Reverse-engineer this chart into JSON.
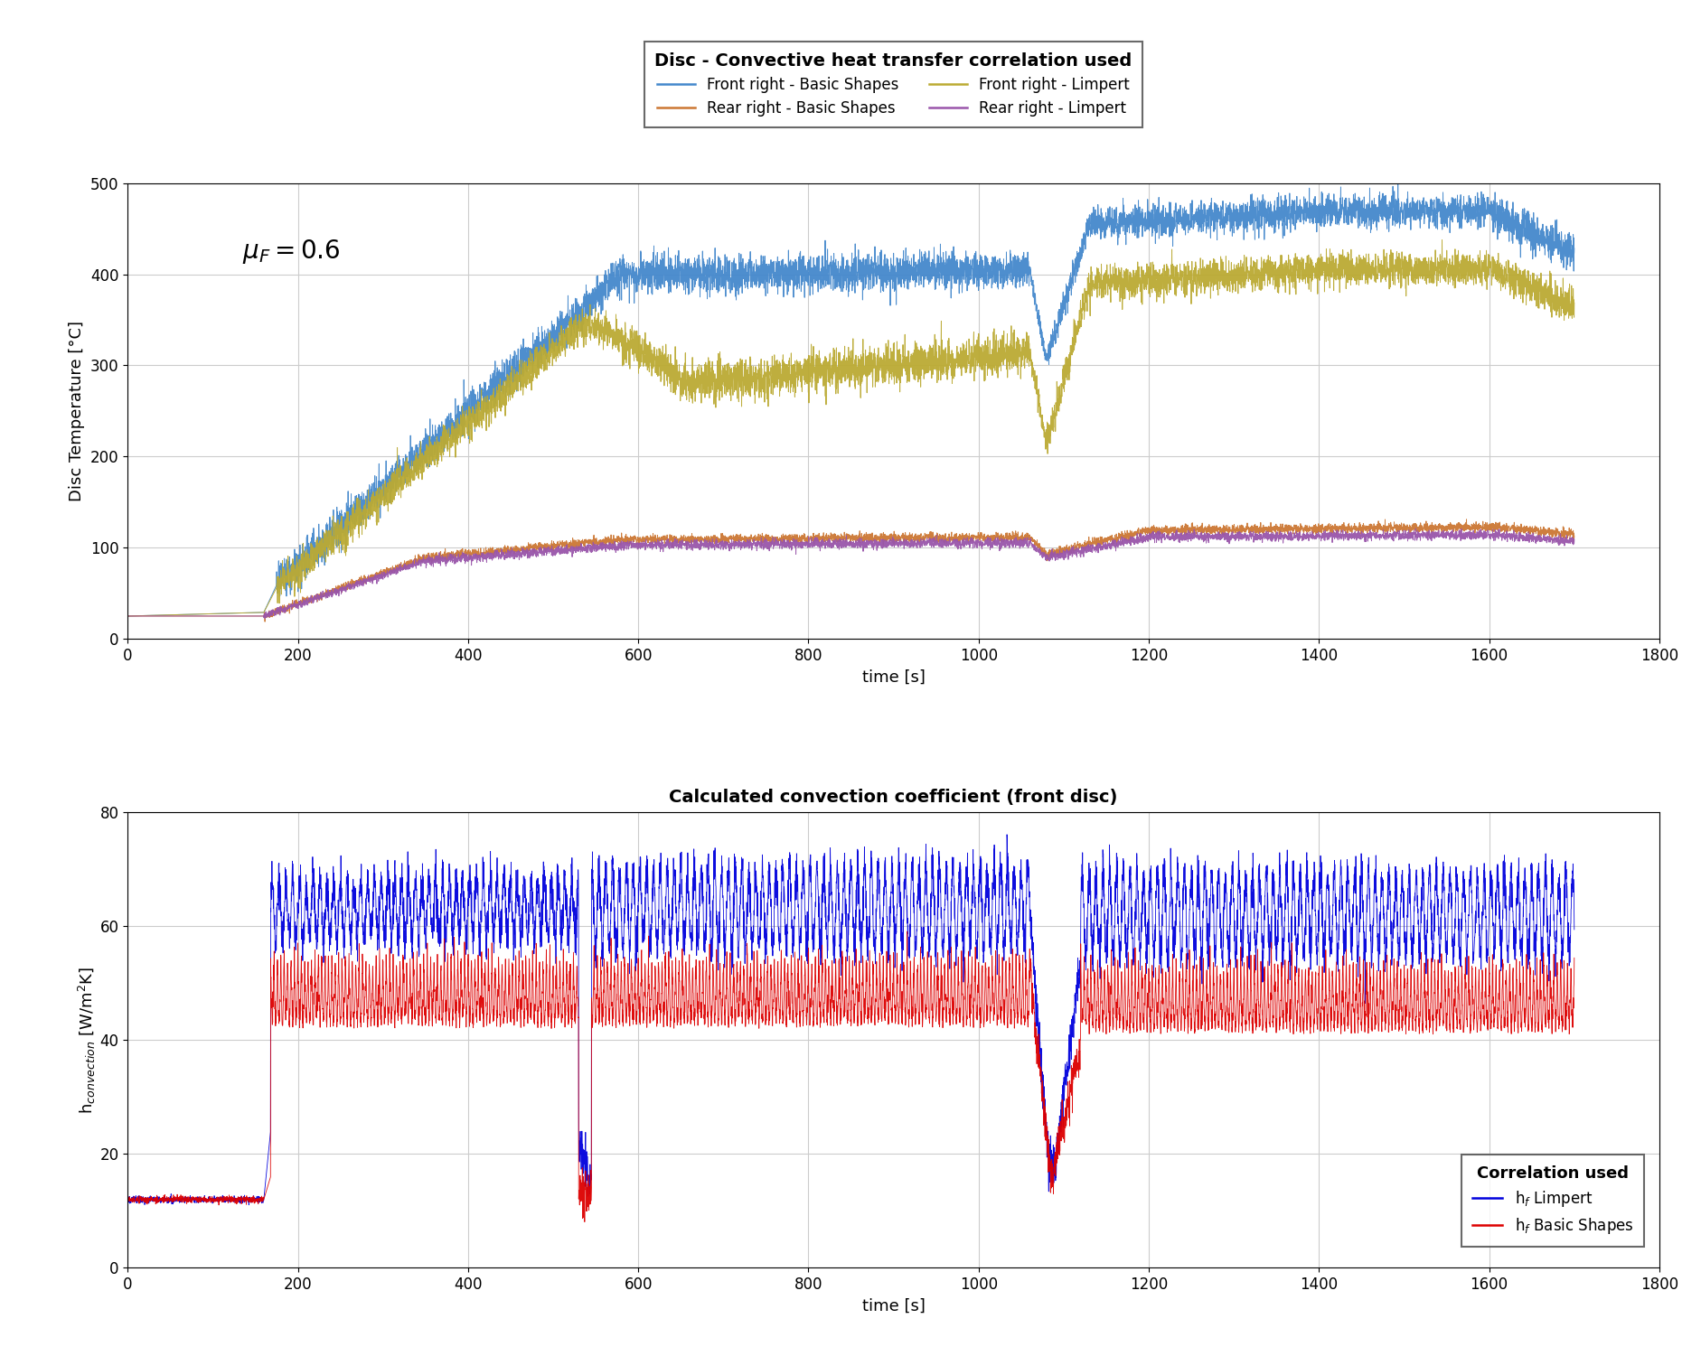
{
  "title_legend": "Disc - Convective heat transfer correlation used",
  "legend_entries_row1": [
    {
      "label": "Front right - Basic Shapes",
      "color": "#4488CC"
    },
    {
      "label": "Rear right - Basic Shapes",
      "color": "#CC7733"
    }
  ],
  "legend_entries_row2": [
    {
      "label": "Front right - Limpert",
      "color": "#BBAA33"
    },
    {
      "label": "Rear right - Limpert",
      "color": "#9955AA"
    }
  ],
  "top_plot": {
    "xlabel": "time [s]",
    "ylabel": "Disc Temperature [°C]",
    "xlim": [
      0,
      1800
    ],
    "ylim": [
      0,
      500
    ],
    "xticks": [
      0,
      200,
      400,
      600,
      800,
      1000,
      1200,
      1400,
      1600,
      1800
    ],
    "yticks": [
      0,
      100,
      200,
      300,
      400,
      500
    ],
    "annotation": "$\\mu_F = 0.6$"
  },
  "bottom_plot": {
    "title": "Calculated convection coefficient (front disc)",
    "xlabel": "time [s]",
    "ylabel": "h$_{convection}$ [W/m$^2$K]",
    "xlim": [
      0,
      1800
    ],
    "ylim": [
      0,
      80
    ],
    "xticks": [
      0,
      200,
      400,
      600,
      800,
      1000,
      1200,
      1400,
      1600,
      1800
    ],
    "yticks": [
      0,
      20,
      40,
      60,
      80
    ],
    "legend_title": "Correlation used",
    "legend_entries": [
      {
        "label": "h$_f$ Limpert",
        "color": "#0000DD"
      },
      {
        "label": "h$_f$ Basic Shapes",
        "color": "#DD0000"
      }
    ]
  },
  "colors": {
    "front_right_basic": "#4488CC",
    "front_right_limpert": "#BBAA33",
    "rear_right_basic": "#CC7733",
    "rear_right_limpert": "#9955AA",
    "h_limpert": "#0000DD",
    "h_basic": "#DD0000"
  },
  "seed": 42
}
